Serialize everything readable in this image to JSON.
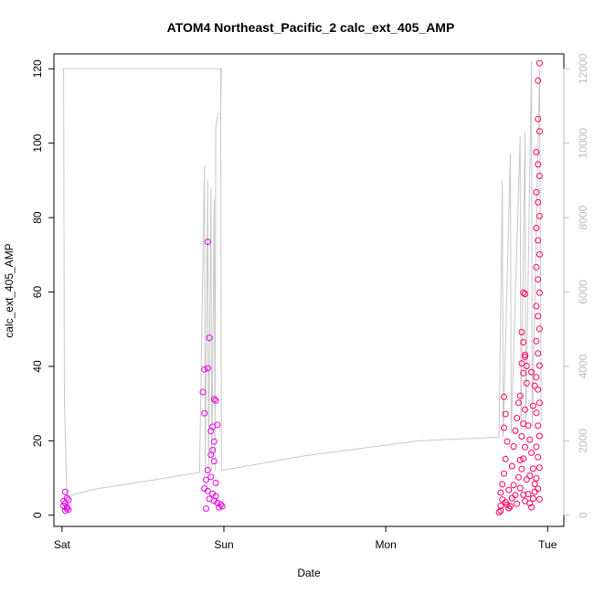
{
  "chart_data": {
    "type": "scatter",
    "title": "ATOM4 Northeast_Pacific_2 calc_ext_405_AMP",
    "xlabel": "Date",
    "ylabel": "calc_ext_405_AMP",
    "x_ticks": [
      "Sat",
      "Sun",
      "Mon",
      "Tue"
    ],
    "x_range_days": [
      -0.05,
      3.1
    ],
    "y_ticks": [
      0,
      20,
      40,
      60,
      80,
      100,
      120
    ],
    "ylim": [
      -3,
      124
    ],
    "y2_ticks": [
      0,
      2000,
      4000,
      6000,
      8000,
      10000,
      12000
    ],
    "y2lim": [
      -300,
      12400
    ],
    "grid": false,
    "colors": {
      "points_early": "#e600e6",
      "points_late": "#ff0066",
      "secondary_line": "#c8c8c8",
      "secondary_axis": "#bdbdbd"
    },
    "secondary_series": {
      "name": "",
      "points": [
        [
          0.0,
          12000
        ],
        [
          0.01,
          12000
        ],
        [
          0.015,
          3000
        ],
        [
          0.03,
          500
        ],
        [
          0.2,
          700
        ],
        [
          0.5,
          900
        ],
        [
          0.85,
          1150
        ],
        [
          0.88,
          9400
        ],
        [
          0.885,
          1100
        ],
        [
          0.9,
          9000
        ],
        [
          0.905,
          1150
        ],
        [
          0.92,
          8800
        ],
        [
          0.925,
          1200
        ],
        [
          0.94,
          8500
        ],
        [
          0.945,
          1200
        ],
        [
          0.95,
          10400
        ],
        [
          0.96,
          10700
        ],
        [
          0.97,
          10800
        ],
        [
          0.98,
          10800
        ],
        [
          0.985,
          12000
        ],
        [
          0.0,
          12000
        ],
        [
          0.98,
          12000
        ],
        [
          0.985,
          1200
        ],
        [
          1.5,
          1600
        ],
        [
          2.2,
          2000
        ],
        [
          2.7,
          2100
        ],
        [
          2.72,
          9000
        ],
        [
          2.725,
          2100
        ],
        [
          2.77,
          9700
        ],
        [
          2.775,
          2200
        ],
        [
          2.83,
          10200
        ],
        [
          2.835,
          2300
        ],
        [
          2.86,
          10300
        ],
        [
          2.865,
          2300
        ],
        [
          2.9,
          12200
        ],
        [
          2.905,
          2400
        ],
        [
          2.95,
          12000
        ],
        [
          2.96,
          2500
        ]
      ]
    },
    "series": [
      {
        "name": "",
        "points": [
          [
            0.01,
            2.5
          ],
          [
            0.02,
            3.2
          ],
          [
            0.03,
            1.8
          ],
          [
            0.04,
            4.1
          ],
          [
            0.02,
            6.3
          ],
          [
            0.03,
            2.2
          ],
          [
            0.04,
            1.5
          ],
          [
            0.01,
            3.8
          ],
          [
            0.02,
            1.2
          ],
          [
            0.03,
            4.6
          ],
          [
            0.88,
            39.2
          ],
          [
            0.9,
            39.5
          ],
          [
            0.91,
            47.7
          ],
          [
            0.9,
            73.5
          ],
          [
            0.94,
            31.2
          ],
          [
            0.95,
            30.8
          ],
          [
            0.93,
            23.8
          ],
          [
            0.96,
            24.3
          ],
          [
            0.92,
            16.2
          ],
          [
            0.94,
            14.5
          ],
          [
            0.9,
            12.1
          ],
          [
            0.92,
            10.3
          ],
          [
            0.95,
            8.7
          ],
          [
            0.88,
            7.2
          ],
          [
            0.9,
            6.5
          ],
          [
            0.93,
            5.8
          ],
          [
            0.95,
            5.1
          ],
          [
            0.91,
            4.4
          ],
          [
            0.94,
            3.9
          ],
          [
            0.96,
            3.3
          ],
          [
            0.98,
            2.9
          ],
          [
            0.99,
            2.4
          ],
          [
            0.97,
            2.1
          ],
          [
            0.89,
            1.8
          ],
          [
            0.92,
            22.6
          ],
          [
            0.87,
            33.1
          ],
          [
            0.88,
            27.4
          ],
          [
            0.94,
            19.8
          ],
          [
            0.93,
            17.5
          ],
          [
            0.89,
            9.5
          ]
        ]
      },
      {
        "name": "",
        "points": [
          [
            2.95,
            121.5
          ],
          [
            2.94,
            116.8
          ],
          [
            2.94,
            106.5
          ],
          [
            2.95,
            103.2
          ],
          [
            2.93,
            97.6
          ],
          [
            2.94,
            94.3
          ],
          [
            2.95,
            91.2
          ],
          [
            2.93,
            86.8
          ],
          [
            2.94,
            84.1
          ],
          [
            2.95,
            80.4
          ],
          [
            2.93,
            77.2
          ],
          [
            2.94,
            73.9
          ],
          [
            2.95,
            70.1
          ],
          [
            2.93,
            66.7
          ],
          [
            2.94,
            63.4
          ],
          [
            2.95,
            59.8
          ],
          [
            2.93,
            56.2
          ],
          [
            2.94,
            53.5
          ],
          [
            2.95,
            50.1
          ],
          [
            2.93,
            46.8
          ],
          [
            2.94,
            43.5
          ],
          [
            2.95,
            40.2
          ],
          [
            2.93,
            37.1
          ],
          [
            2.94,
            33.8
          ],
          [
            2.95,
            30.2
          ],
          [
            2.93,
            27.5
          ],
          [
            2.94,
            24.1
          ],
          [
            2.95,
            21.3
          ],
          [
            2.93,
            18.4
          ],
          [
            2.94,
            15.6
          ],
          [
            2.95,
            12.8
          ],
          [
            2.93,
            9.9
          ],
          [
            2.94,
            7.1
          ],
          [
            2.95,
            4.3
          ],
          [
            2.85,
            59.8
          ],
          [
            2.86,
            59.5
          ],
          [
            2.84,
            49.2
          ],
          [
            2.85,
            46.5
          ],
          [
            2.86,
            43.1
          ],
          [
            2.84,
            40.8
          ],
          [
            2.85,
            38.2
          ],
          [
            2.87,
            35.5
          ],
          [
            2.83,
            32.1
          ],
          [
            2.86,
            28.4
          ],
          [
            2.85,
            24.6
          ],
          [
            2.84,
            21.2
          ],
          [
            2.86,
            18.3
          ],
          [
            2.85,
            15.2
          ],
          [
            2.84,
            12.4
          ],
          [
            2.87,
            9.6
          ],
          [
            2.83,
            7.3
          ],
          [
            2.85,
            5.5
          ],
          [
            2.86,
            3.8
          ],
          [
            2.73,
            31.8
          ],
          [
            2.74,
            27.2
          ],
          [
            2.73,
            23.5
          ],
          [
            2.75,
            19.8
          ],
          [
            2.74,
            15.1
          ],
          [
            2.73,
            11.2
          ],
          [
            2.72,
            8.3
          ],
          [
            2.71,
            6.1
          ],
          [
            2.72,
            4.2
          ],
          [
            2.71,
            2.5
          ],
          [
            2.7,
            0.8
          ],
          [
            2.71,
            1.2
          ],
          [
            2.74,
            3.5
          ],
          [
            2.76,
            6.8
          ],
          [
            2.78,
            13.2
          ],
          [
            2.79,
            18.5
          ],
          [
            2.8,
            22.7
          ],
          [
            2.81,
            26.1
          ],
          [
            2.82,
            30.2
          ],
          [
            2.79,
            8.1
          ],
          [
            2.8,
            5.4
          ],
          [
            2.81,
            3.1
          ],
          [
            2.82,
            10.2
          ],
          [
            2.83,
            14.8
          ],
          [
            2.77,
            2.4
          ],
          [
            2.78,
            4.6
          ],
          [
            2.76,
            1.9
          ],
          [
            2.75,
            2.8
          ],
          [
            2.88,
            24.1
          ],
          [
            2.89,
            20.3
          ],
          [
            2.9,
            16.8
          ],
          [
            2.91,
            12.5
          ],
          [
            2.92,
            8.4
          ],
          [
            2.88,
            5.7
          ],
          [
            2.89,
            3.2
          ],
          [
            2.9,
            2.1
          ],
          [
            2.91,
            4.5
          ],
          [
            2.92,
            6.3
          ],
          [
            2.89,
            10.6
          ],
          [
            2.91,
            29.4
          ],
          [
            2.92,
            34.8
          ],
          [
            2.9,
            38.5
          ],
          [
            2.87,
            40.1
          ],
          [
            2.86,
            42.6
          ]
        ]
      }
    ]
  }
}
